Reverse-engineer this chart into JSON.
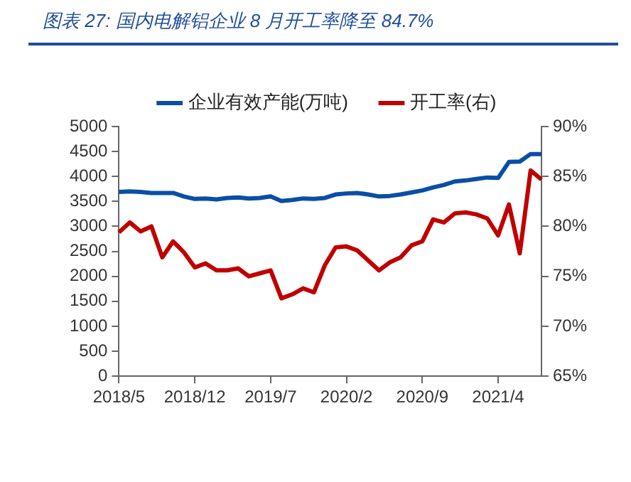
{
  "chart_data": {
    "type": "line",
    "title": "图表 27: 国内电解铝企业 8 月开工率降至 84.7%",
    "categories": [
      "2018/5",
      null,
      null,
      null,
      null,
      null,
      null,
      "2018/12",
      null,
      null,
      null,
      null,
      null,
      null,
      "2019/7",
      null,
      null,
      null,
      null,
      null,
      null,
      "2020/2",
      null,
      null,
      null,
      null,
      null,
      null,
      "2020/9",
      null,
      null,
      null,
      null,
      null,
      null,
      "2021/4",
      null,
      null,
      null,
      null
    ],
    "series": [
      {
        "name": "企业有效产能(万吨)",
        "color": "#0a4ea6",
        "values": [
          3690,
          3700,
          3690,
          3670,
          3670,
          3670,
          3600,
          3550,
          3560,
          3540,
          3570,
          3580,
          3560,
          3570,
          3600,
          3510,
          3530,
          3560,
          3550,
          3570,
          3640,
          3660,
          3670,
          3640,
          3600,
          3610,
          3640,
          3680,
          3720,
          3780,
          3830,
          3900,
          3920,
          3950,
          3980,
          3970,
          4290,
          4300,
          4450,
          4450
        ]
      },
      {
        "name": "开工率(右)",
        "color": "#c00000",
        "axis": "y2",
        "values": [
          79.4,
          80.4,
          79.5,
          80.0,
          76.9,
          78.5,
          77.4,
          75.9,
          76.3,
          75.6,
          75.6,
          75.8,
          75.0,
          75.3,
          75.6,
          72.8,
          73.2,
          73.8,
          73.4,
          76.1,
          77.9,
          78.0,
          77.6,
          76.6,
          75.6,
          76.4,
          76.9,
          78.1,
          78.5,
          80.7,
          80.4,
          81.3,
          81.4,
          81.2,
          80.8,
          79.1,
          82.2,
          77.3,
          85.6,
          84.7
        ]
      }
    ],
    "ylim": [
      0,
      5000
    ],
    "yticks": [
      0,
      500,
      1000,
      1500,
      2000,
      2500,
      3000,
      3500,
      4000,
      4500,
      5000
    ],
    "y2lim": [
      65,
      90
    ],
    "y2ticks": [
      {
        "value": 65,
        "label": "65%"
      },
      {
        "value": 70,
        "label": "70%"
      },
      {
        "value": 75,
        "label": "75%"
      },
      {
        "value": 80,
        "label": "80%"
      },
      {
        "value": 85,
        "label": "85%"
      },
      {
        "value": 90,
        "label": "90%"
      }
    ],
    "legend": "top",
    "grid": false,
    "marker": "none",
    "line_style": "solid"
  }
}
